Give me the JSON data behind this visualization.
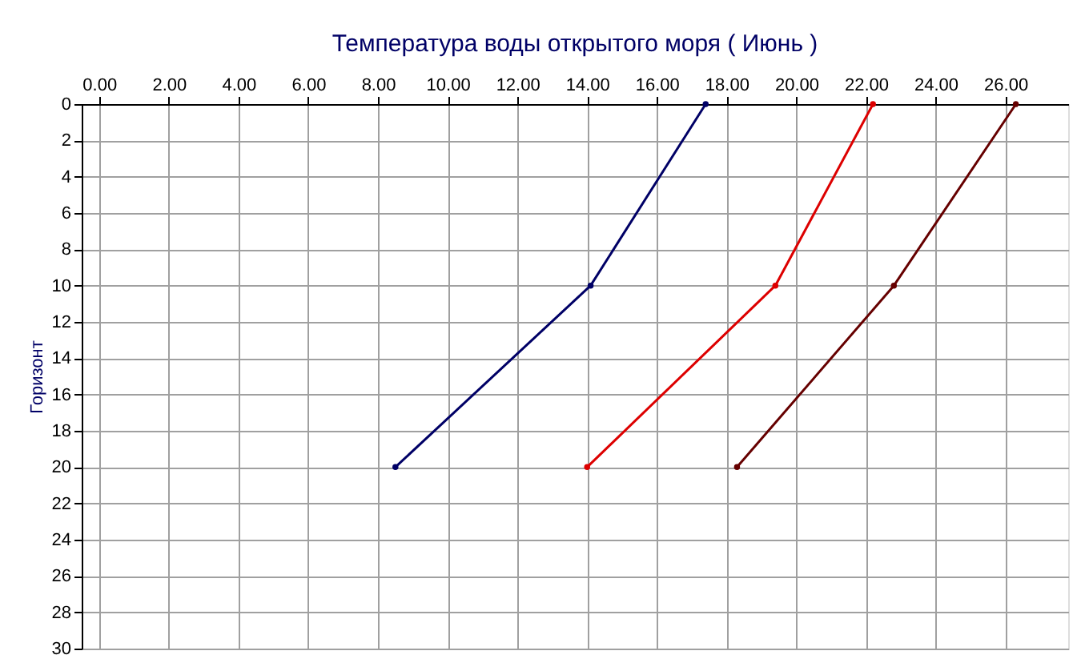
{
  "chart_data": {
    "type": "line",
    "title": "Температура воды открытого моря     ( Июнь )",
    "ylabel": "Горизонт",
    "xlim": [
      -0.5,
      27.8
    ],
    "xticks": [
      {
        "value": 0,
        "label": "0.00"
      },
      {
        "value": 2,
        "label": "2.00"
      },
      {
        "value": 4,
        "label": "4.00"
      },
      {
        "value": 6,
        "label": "6.00"
      },
      {
        "value": 8,
        "label": "8.00"
      },
      {
        "value": 10,
        "label": "10.00"
      },
      {
        "value": 12,
        "label": "12.00"
      },
      {
        "value": 14,
        "label": "14.00"
      },
      {
        "value": 16,
        "label": "16.00"
      },
      {
        "value": 18,
        "label": "18.00"
      },
      {
        "value": 20,
        "label": "20.00"
      },
      {
        "value": 22,
        "label": "22.00"
      },
      {
        "value": 24,
        "label": "24.00"
      },
      {
        "value": 26,
        "label": "26.00"
      }
    ],
    "ylim": [
      30,
      0
    ],
    "yticks": [
      0,
      2,
      4,
      6,
      8,
      10,
      12,
      14,
      16,
      18,
      20,
      22,
      24,
      26,
      28,
      30
    ],
    "grid": true,
    "marker": "circle",
    "line_style": "solid",
    "series": [
      {
        "color": "#000066",
        "x": [
          17.4,
          14.1,
          8.5
        ],
        "values": [
          0,
          10,
          20
        ]
      },
      {
        "color": "#dd0000",
        "x": [
          22.2,
          19.4,
          14.0
        ],
        "values": [
          0,
          10,
          20
        ]
      },
      {
        "color": "#660000",
        "x": [
          26.3,
          22.8,
          18.3
        ],
        "values": [
          0,
          10,
          20
        ]
      }
    ]
  }
}
